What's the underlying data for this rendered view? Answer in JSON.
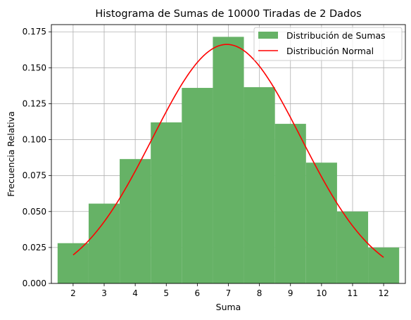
{
  "chart_data": {
    "type": "bar",
    "title": "Histograma de Sumas de 10000 Tiradas de 2 Dados",
    "xlabel": "Suma",
    "ylabel": "Frecuencia Relativa",
    "x_ticks": [
      "2",
      "3",
      "4",
      "5",
      "6",
      "7",
      "8",
      "9",
      "10",
      "11",
      "12"
    ],
    "y_ticks": [
      "0.000",
      "0.025",
      "0.050",
      "0.075",
      "0.100",
      "0.125",
      "0.150",
      "0.175"
    ],
    "xlim": [
      1.3,
      12.7
    ],
    "ylim": [
      0,
      0.18
    ],
    "grid": true,
    "legend_position": "top-right",
    "colors": {
      "bars": "#66b266",
      "normal_line": "#ff0000",
      "grid": "#b0b0b0"
    },
    "series": [
      {
        "name": "Distribución de Sumas",
        "type": "bar",
        "x": [
          2,
          3,
          4,
          5,
          6,
          7,
          8,
          9,
          10,
          11,
          12
        ],
        "values": [
          0.028,
          0.0555,
          0.0865,
          0.112,
          0.136,
          0.1715,
          0.1365,
          0.111,
          0.084,
          0.05,
          0.025
        ]
      },
      {
        "name": "Distribución Normal",
        "type": "line",
        "mean": 6.95,
        "std": 2.4,
        "x_range": [
          2,
          12
        ]
      }
    ]
  }
}
